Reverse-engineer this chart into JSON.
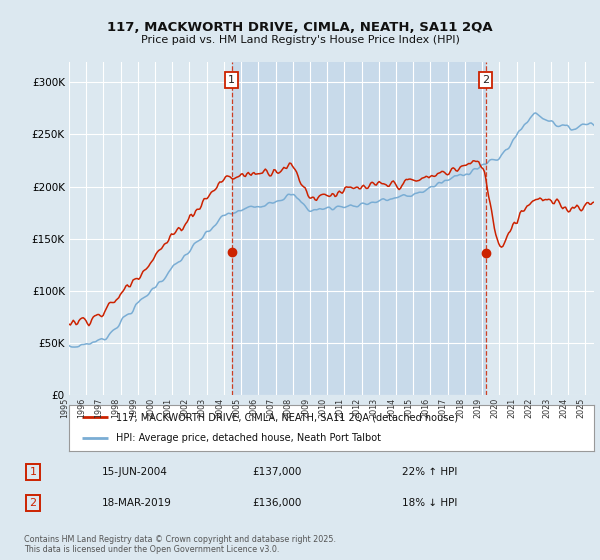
{
  "title_line1": "117, MACKWORTH DRIVE, CIMLA, NEATH, SA11 2QA",
  "title_line2": "Price paid vs. HM Land Registry's House Price Index (HPI)",
  "background_color": "#dce8f0",
  "plot_bg_color": "#dce8f0",
  "shade_color": "#c8daea",
  "grid_color": "#ffffff",
  "line1_color": "#cc2200",
  "line2_color": "#7aadd4",
  "line1_label": "117, MACKWORTH DRIVE, CIMLA, NEATH, SA11 2QA (detached house)",
  "line2_label": "HPI: Average price, detached house, Neath Port Talbot",
  "annotation1_date": "15-JUN-2004",
  "annotation1_price": "£137,000",
  "annotation1_hpi": "22% ↑ HPI",
  "annotation2_date": "18-MAR-2019",
  "annotation2_price": "£136,000",
  "annotation2_hpi": "18% ↓ HPI",
  "footer": "Contains HM Land Registry data © Crown copyright and database right 2025.\nThis data is licensed under the Open Government Licence v3.0.",
  "ylim_min": 0,
  "ylim_max": 320000,
  "xmin": 1995.0,
  "xmax": 2025.5,
  "ann1_year": 2004.45,
  "ann1_price_y": 137000,
  "ann2_year": 2019.2,
  "ann2_price_y": 136000
}
